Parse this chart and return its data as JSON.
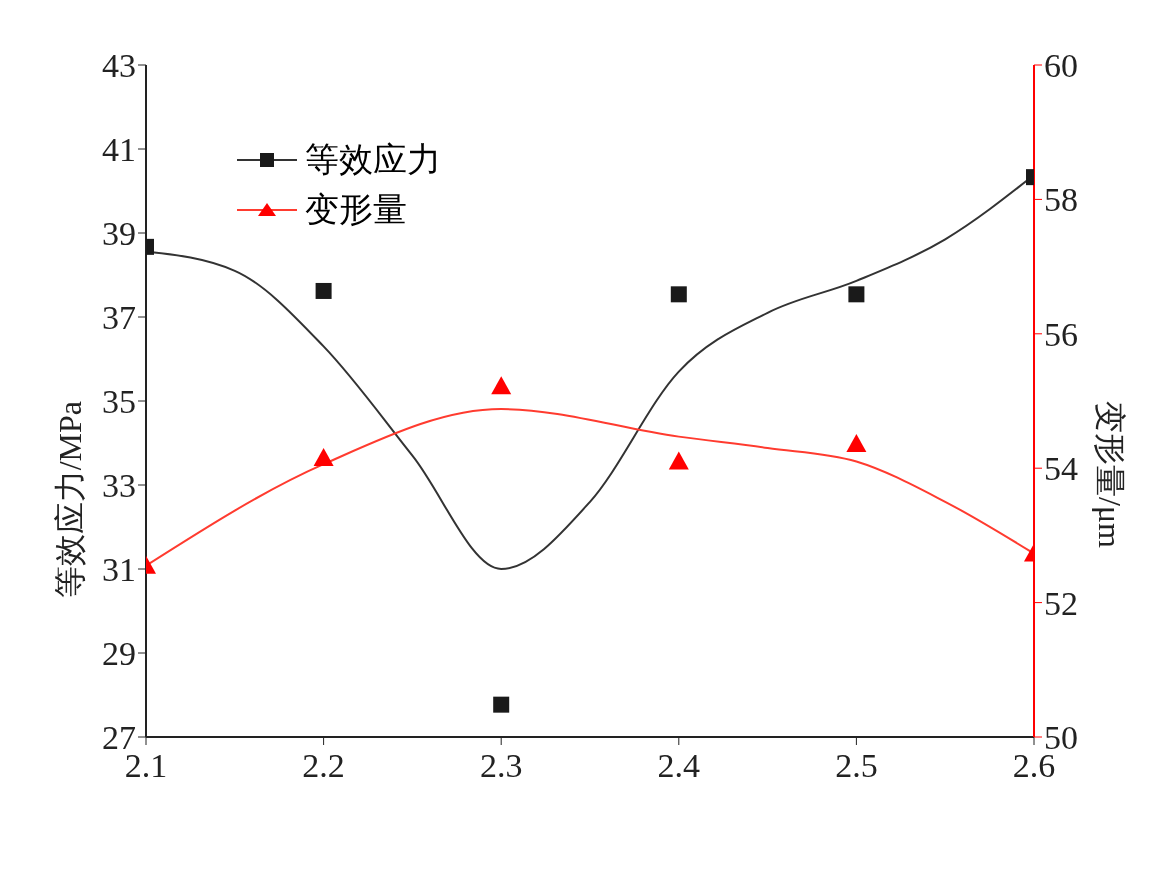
{
  "chart_data": {
    "type": "scatter",
    "xlabel": null,
    "ylabel": "等效应力/MPa",
    "y2label": "变形量/μm",
    "xlim": [
      2.1,
      2.6
    ],
    "xticks": [
      2.1,
      2.2,
      2.3,
      2.4,
      2.5,
      2.6
    ],
    "ylim": [
      27,
      43
    ],
    "yticks": [
      27,
      29,
      31,
      33,
      35,
      37,
      39,
      41,
      43
    ],
    "y2lim": [
      50,
      60
    ],
    "y2ticks": [
      50,
      52,
      54,
      56,
      58,
      60
    ],
    "grid": false,
    "legend": "top left",
    "series": [
      {
        "name": "等效应力",
        "marker": "square",
        "color": "#1a1a1a",
        "x": [
          2.1,
          2.2,
          2.3,
          2.4,
          2.5,
          2.6
        ],
        "values": [
          38.67,
          37.62,
          27.77,
          37.54,
          37.54,
          40.33
        ]
      },
      {
        "name": "变形量",
        "marker": "triangle",
        "axis": "y2",
        "color": "#ff0000",
        "x": [
          2.1,
          2.2,
          2.3,
          2.4,
          2.5,
          2.6
        ],
        "values": [
          52.55,
          54.15,
          55.22,
          54.1,
          54.36,
          52.73
        ]
      },
      {
        "type": "line",
        "marker": "none",
        "color": "#333333",
        "x": [
          2.1,
          2.15,
          2.2,
          2.25,
          2.3,
          2.35,
          2.4,
          2.45,
          2.5,
          2.55,
          2.6
        ],
        "values": [
          38.56,
          38.1,
          36.3,
          33.7,
          31.0,
          32.6,
          35.7,
          37.1,
          37.86,
          38.85,
          40.38
        ]
      },
      {
        "type": "line",
        "marker": "none",
        "axis": "y2",
        "color": "#ff3b2f",
        "x": [
          2.1,
          2.2,
          2.3,
          2.4,
          2.45,
          2.5,
          2.55,
          2.6
        ],
        "values": [
          52.55,
          54.06,
          54.88,
          54.47,
          54.3,
          54.1,
          53.5,
          52.73
        ]
      }
    ]
  }
}
